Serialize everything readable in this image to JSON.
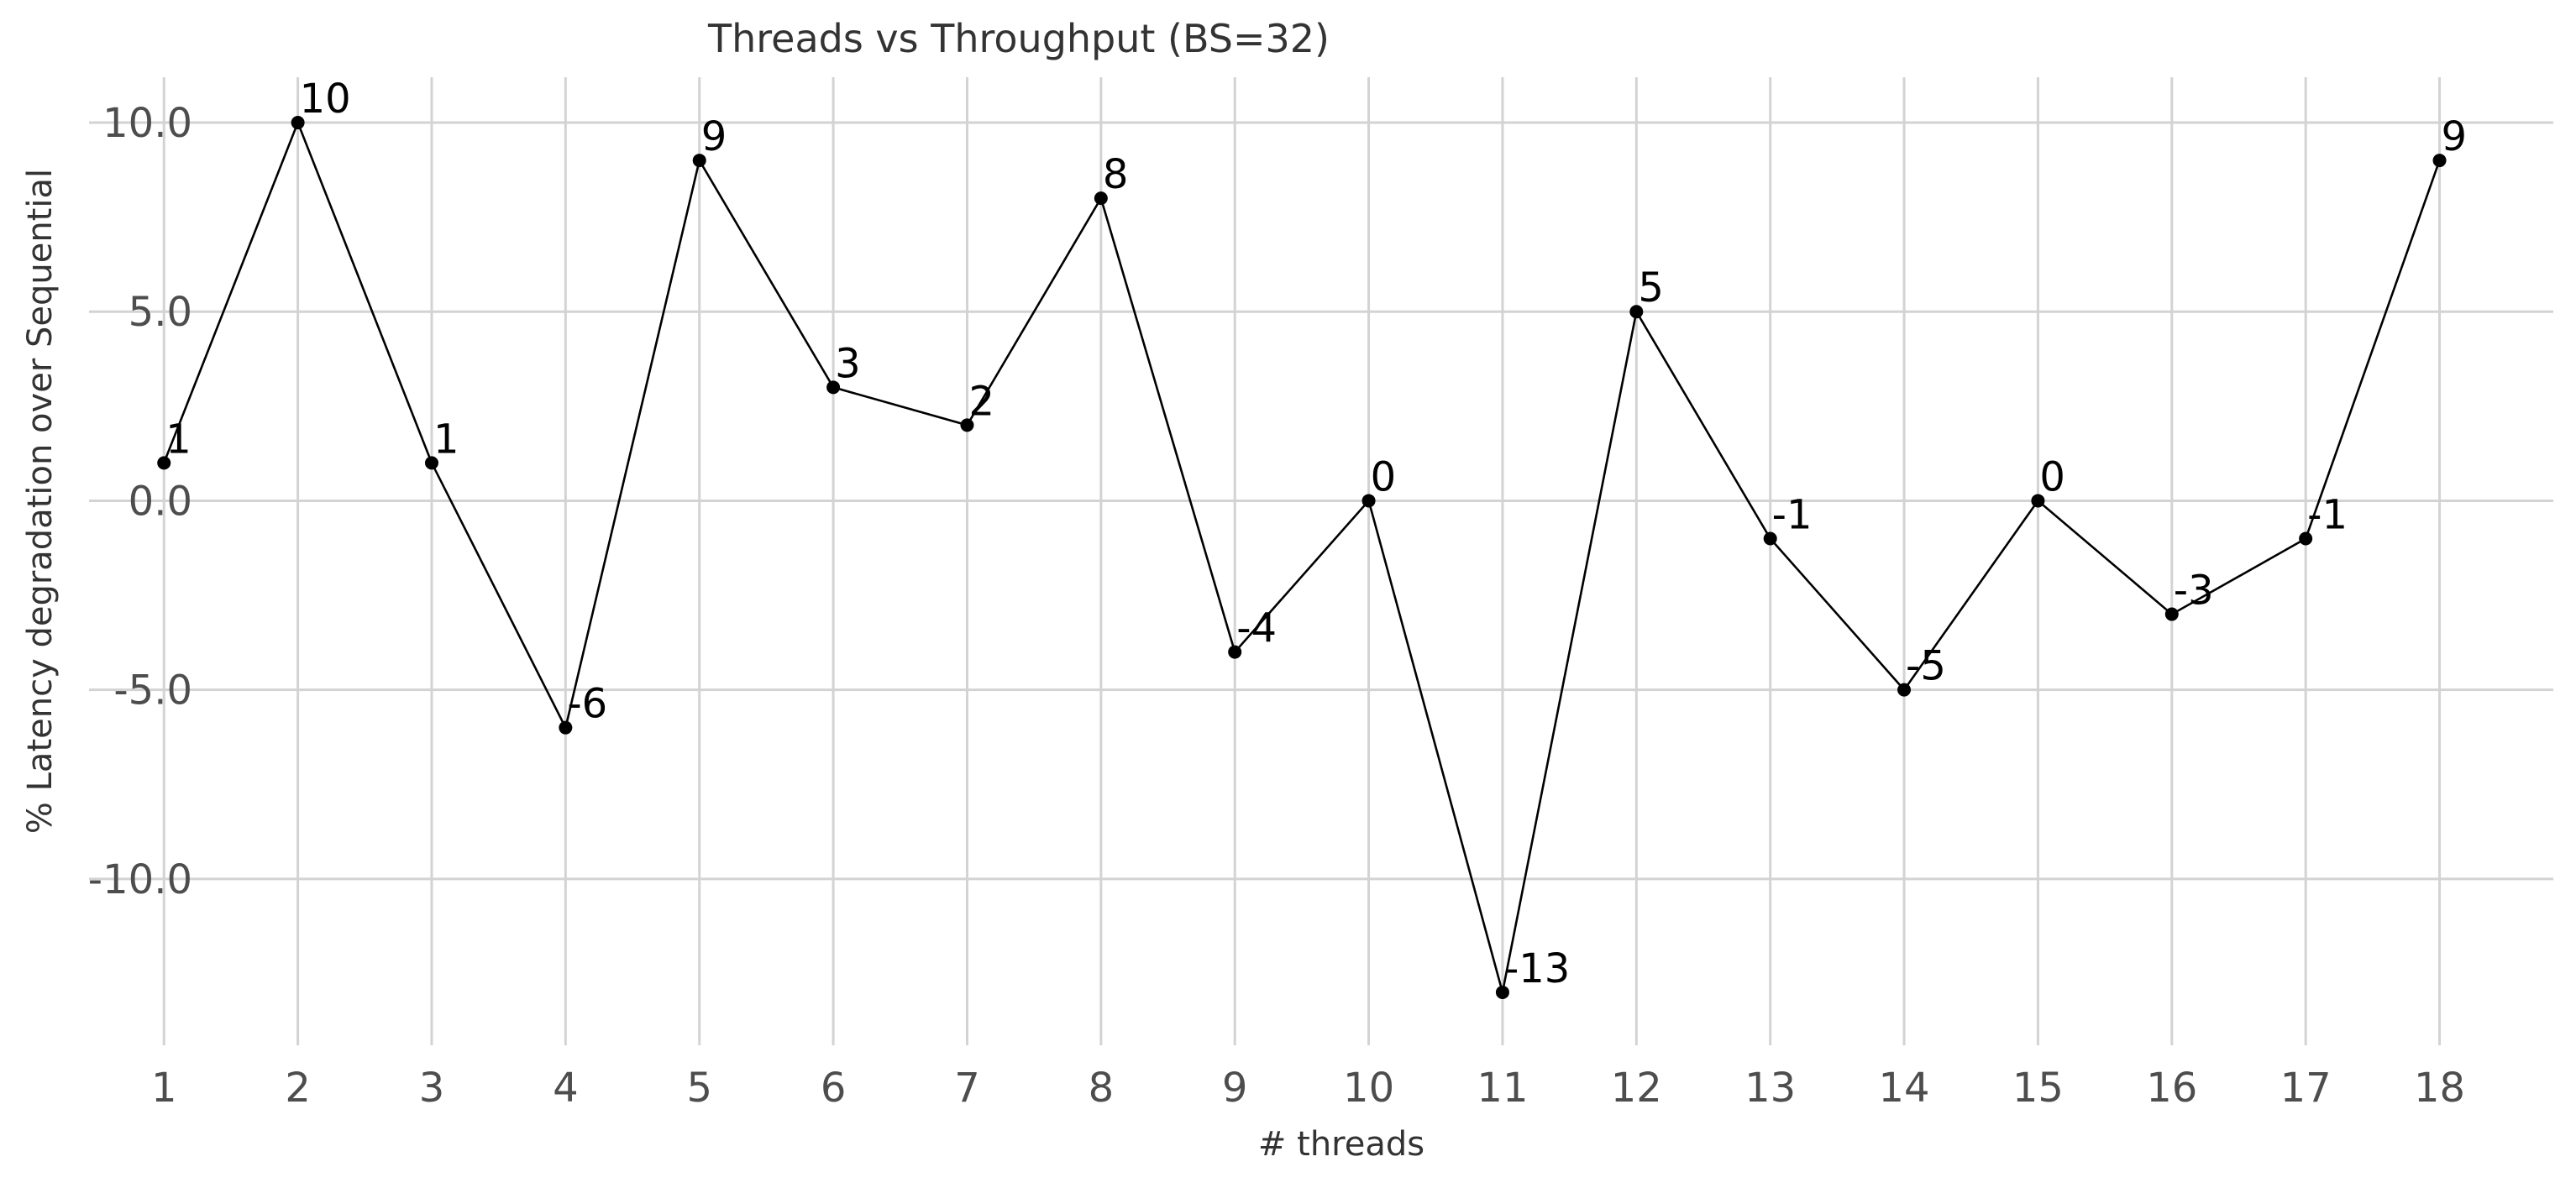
{
  "chart_data": {
    "type": "line",
    "title": "Threads vs Throughput (BS=32)",
    "xlabel": "# threads",
    "ylabel": "% Latency degradation over Sequential",
    "x": [
      1,
      2,
      3,
      4,
      5,
      6,
      7,
      8,
      9,
      10,
      11,
      12,
      13,
      14,
      15,
      16,
      17,
      18
    ],
    "xticks": [
      "1",
      "2",
      "3",
      "4",
      "5",
      "6",
      "7",
      "8",
      "9",
      "10",
      "11",
      "12",
      "13",
      "14",
      "15",
      "16",
      "17",
      "18"
    ],
    "yticks": [
      {
        "value": 10,
        "label": "10.0"
      },
      {
        "value": 5,
        "label": "5.0"
      },
      {
        "value": 0,
        "label": "0.0"
      },
      {
        "value": -5,
        "label": "-5.0"
      },
      {
        "value": -10,
        "label": "-10.0"
      }
    ],
    "series": [
      {
        "values": [
          1,
          10,
          1,
          -6,
          9,
          3,
          2,
          8,
          -4,
          0,
          -13,
          5,
          -1,
          -5,
          0,
          -3,
          -1,
          9
        ],
        "data_labels": [
          "1",
          "10",
          "1",
          "-6",
          "9",
          "3",
          "2",
          "8",
          "-4",
          "0",
          "-13",
          "5",
          "-1",
          "-5",
          "0",
          "-3",
          "-1",
          "9"
        ],
        "color": "#000000",
        "marker": "circle"
      }
    ],
    "xlim": [
      0.44,
      18.85
    ],
    "ylim": [
      -14.4,
      11.2
    ],
    "grid": true,
    "legend": "none",
    "grid_color": "#d3d3d3",
    "tick_color": "#4d4d4d",
    "background": "#ffffff"
  }
}
